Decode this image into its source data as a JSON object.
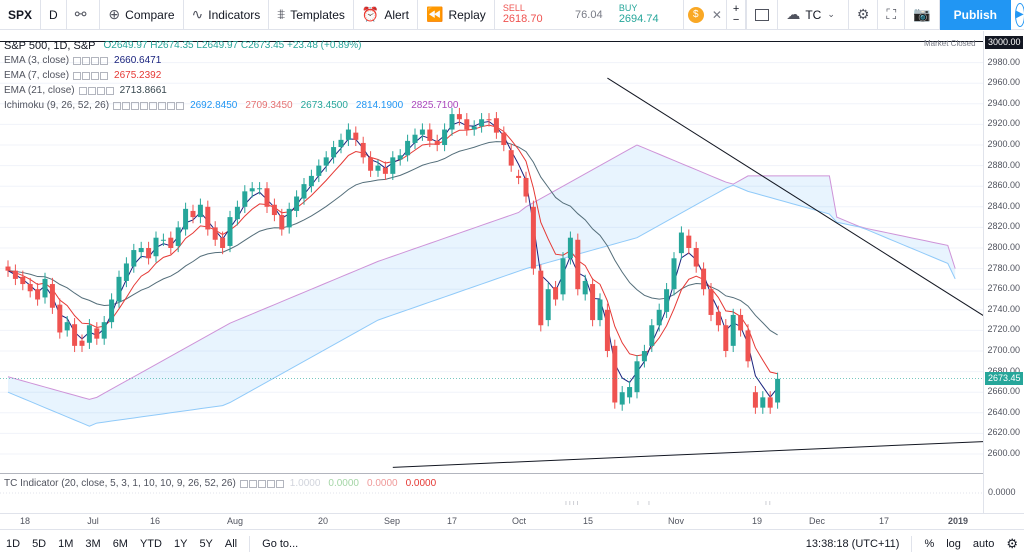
{
  "toolbar": {
    "symbol": "SPX",
    "interval": "D",
    "compare": "Compare",
    "indicators": "Indicators",
    "templates": "Templates",
    "alert": "Alert",
    "replay": "Replay",
    "sell_label": "SELL",
    "sell_price": "2618.70",
    "spread": "76.04",
    "buy_label": "BUY",
    "buy_price": "2694.74",
    "tc_label": "TC",
    "publish": "Publish"
  },
  "legend": {
    "title": "S&P 500, 1D, S&P",
    "ohlc": "O2649.97 H2674.35 L2649.97 C2673.45 +23.48 (+0.89%)",
    "market_status": "Market Closed",
    "ema3": {
      "name": "EMA (3, close)",
      "value": "2660.6471",
      "color": "#1a237e"
    },
    "ema7": {
      "name": "EMA (7, close)",
      "value": "2675.2392",
      "color": "#e53935"
    },
    "ema21": {
      "name": "EMA (21, close)",
      "value": "2713.8661",
      "color": "#37474f"
    },
    "ichimoku": {
      "name": "Ichimoku (9, 26, 52, 26)",
      "values": [
        "2692.8450",
        "2709.3450",
        "2673.4500",
        "2814.1900",
        "2825.7100"
      ],
      "colors": [
        "#2196f3",
        "#e57373",
        "#26a69a",
        "#2196f3",
        "#ab47bc"
      ]
    }
  },
  "indicator_pane": {
    "name": "TC Indicator (20, close, 5, 3, 1, 10, 10, 9, 26, 52, 26)",
    "values": [
      "1.0000",
      "0.0000",
      "0.0000",
      "0.0000"
    ],
    "scale_value": "0.0000"
  },
  "price_scale": {
    "top_label": "3000.00",
    "current_label": "2673.45",
    "ticks": [
      "2980.00",
      "2960.00",
      "2940.00",
      "2920.00",
      "2900.00",
      "2880.00",
      "2860.00",
      "2840.00",
      "2820.00",
      "2800.00",
      "2780.00",
      "2760.00",
      "2740.00",
      "2720.00",
      "2700.00",
      "2680.00",
      "2660.00",
      "2640.00",
      "2620.00",
      "2600.00"
    ]
  },
  "time_axis": [
    "18",
    "Jul",
    "16",
    "Aug",
    "20",
    "Sep",
    "17",
    "Oct",
    "15",
    "Nov",
    "19",
    "Dec",
    "17",
    "2019"
  ],
  "bottom_bar": {
    "ranges": [
      "1D",
      "5D",
      "1M",
      "3M",
      "6M",
      "YTD",
      "1Y",
      "5Y",
      "All"
    ],
    "goto": "Go to...",
    "clock": "13:38:18 (UTC+11)",
    "percent": "%",
    "log": "log",
    "auto": "auto"
  },
  "chart_data": {
    "type": "candlestick",
    "ylim": [
      2590,
      3000
    ],
    "candles": [
      {
        "o": 2782,
        "c": 2778
      },
      {
        "o": 2778,
        "c": 2770
      },
      {
        "o": 2772,
        "c": 2765
      },
      {
        "o": 2765,
        "c": 2758
      },
      {
        "o": 2760,
        "c": 2750
      },
      {
        "o": 2752,
        "c": 2770
      },
      {
        "o": 2765,
        "c": 2742
      },
      {
        "o": 2745,
        "c": 2718
      },
      {
        "o": 2720,
        "c": 2728
      },
      {
        "o": 2726,
        "c": 2705
      },
      {
        "o": 2710,
        "c": 2705
      },
      {
        "o": 2708,
        "c": 2725
      },
      {
        "o": 2722,
        "c": 2712
      },
      {
        "o": 2712,
        "c": 2728
      },
      {
        "o": 2728,
        "c": 2750
      },
      {
        "o": 2748,
        "c": 2772
      },
      {
        "o": 2768,
        "c": 2785
      },
      {
        "o": 2782,
        "c": 2798
      },
      {
        "o": 2796,
        "c": 2800
      },
      {
        "o": 2800,
        "c": 2790
      },
      {
        "o": 2792,
        "c": 2810
      },
      {
        "o": 2808,
        "c": 2808
      },
      {
        "o": 2810,
        "c": 2800
      },
      {
        "o": 2802,
        "c": 2820
      },
      {
        "o": 2818,
        "c": 2838
      },
      {
        "o": 2836,
        "c": 2830
      },
      {
        "o": 2830,
        "c": 2842
      },
      {
        "o": 2840,
        "c": 2818
      },
      {
        "o": 2820,
        "c": 2808
      },
      {
        "o": 2810,
        "c": 2800
      },
      {
        "o": 2802,
        "c": 2830
      },
      {
        "o": 2828,
        "c": 2840
      },
      {
        "o": 2840,
        "c": 2855
      },
      {
        "o": 2855,
        "c": 2858
      },
      {
        "o": 2858,
        "c": 2858
      },
      {
        "o": 2858,
        "c": 2840
      },
      {
        "o": 2842,
        "c": 2832
      },
      {
        "o": 2832,
        "c": 2818
      },
      {
        "o": 2820,
        "c": 2838
      },
      {
        "o": 2836,
        "c": 2850
      },
      {
        "o": 2848,
        "c": 2862
      },
      {
        "o": 2860,
        "c": 2870
      },
      {
        "o": 2870,
        "c": 2880
      },
      {
        "o": 2880,
        "c": 2888
      },
      {
        "o": 2888,
        "c": 2898
      },
      {
        "o": 2898,
        "c": 2905
      },
      {
        "o": 2905,
        "c": 2915
      },
      {
        "o": 2912,
        "c": 2905
      },
      {
        "o": 2902,
        "c": 2888
      },
      {
        "o": 2888,
        "c": 2875
      },
      {
        "o": 2875,
        "c": 2880
      },
      {
        "o": 2878,
        "c": 2872
      },
      {
        "o": 2872,
        "c": 2888
      },
      {
        "o": 2886,
        "c": 2890
      },
      {
        "o": 2890,
        "c": 2904
      },
      {
        "o": 2902,
        "c": 2910
      },
      {
        "o": 2910,
        "c": 2915
      },
      {
        "o": 2915,
        "c": 2904
      },
      {
        "o": 2904,
        "c": 2900
      },
      {
        "o": 2900,
        "c": 2915
      },
      {
        "o": 2915,
        "c": 2930
      },
      {
        "o": 2930,
        "c": 2925
      },
      {
        "o": 2925,
        "c": 2915
      },
      {
        "o": 2915,
        "c": 2918
      },
      {
        "o": 2918,
        "c": 2925
      },
      {
        "o": 2925,
        "c": 2924
      },
      {
        "o": 2926,
        "c": 2912
      },
      {
        "o": 2912,
        "c": 2900
      },
      {
        "o": 2895,
        "c": 2880
      },
      {
        "o": 2870,
        "c": 2868
      },
      {
        "o": 2868,
        "c": 2850
      },
      {
        "o": 2840,
        "c": 2780
      },
      {
        "o": 2778,
        "c": 2725
      },
      {
        "o": 2730,
        "c": 2760
      },
      {
        "o": 2762,
        "c": 2750
      },
      {
        "o": 2755,
        "c": 2790
      },
      {
        "o": 2790,
        "c": 2810
      },
      {
        "o": 2808,
        "c": 2760
      },
      {
        "o": 2755,
        "c": 2768
      },
      {
        "o": 2765,
        "c": 2730
      },
      {
        "o": 2730,
        "c": 2750
      },
      {
        "o": 2740,
        "c": 2700
      },
      {
        "o": 2705,
        "c": 2650
      },
      {
        "o": 2648,
        "c": 2660
      },
      {
        "o": 2655,
        "c": 2665
      },
      {
        "o": 2660,
        "c": 2690
      },
      {
        "o": 2690,
        "c": 2700
      },
      {
        "o": 2705,
        "c": 2725
      },
      {
        "o": 2725,
        "c": 2740
      },
      {
        "o": 2738,
        "c": 2760
      },
      {
        "o": 2760,
        "c": 2790
      },
      {
        "o": 2795,
        "c": 2815
      },
      {
        "o": 2812,
        "c": 2800
      },
      {
        "o": 2800,
        "c": 2782
      },
      {
        "o": 2780,
        "c": 2760
      },
      {
        "o": 2760,
        "c": 2735
      },
      {
        "o": 2738,
        "c": 2725
      },
      {
        "o": 2725,
        "c": 2700
      },
      {
        "o": 2705,
        "c": 2735
      },
      {
        "o": 2735,
        "c": 2720
      },
      {
        "o": 2720,
        "c": 2690
      },
      {
        "o": 2660,
        "c": 2645
      },
      {
        "o": 2645,
        "c": 2655
      },
      {
        "o": 2655,
        "c": 2645
      },
      {
        "o": 2650,
        "c": 2673
      }
    ],
    "trendlines": [
      {
        "from": {
          "i": 81,
          "price": 2965
        },
        "to": {
          "i": 157,
          "price": 2620
        }
      },
      {
        "from": {
          "i": 52,
          "price": 2587
        },
        "to": {
          "i": 157,
          "price": 2620
        }
      }
    ]
  }
}
